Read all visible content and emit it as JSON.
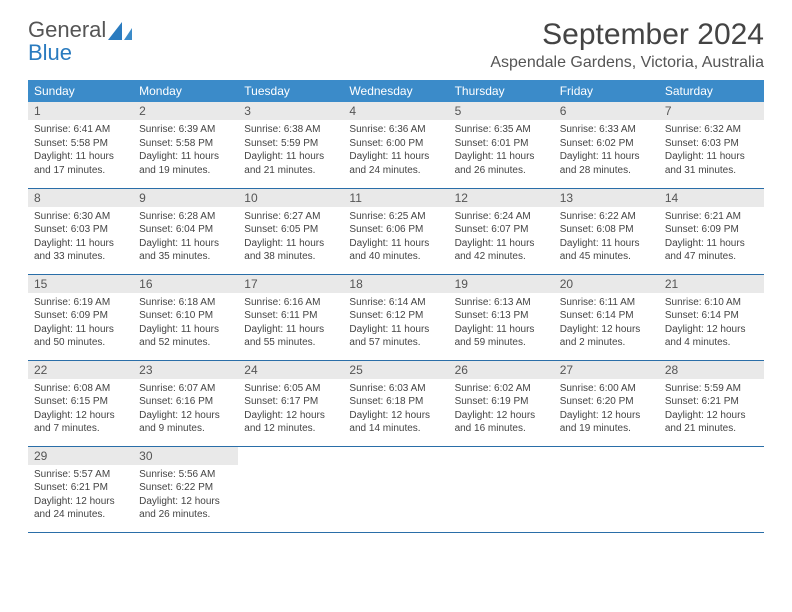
{
  "logo": {
    "line1": "General",
    "line2": "Blue"
  },
  "title": "September 2024",
  "location": "Aspendale Gardens, Victoria, Australia",
  "colors": {
    "header_bg": "#3b8bc9",
    "header_text": "#ffffff",
    "daynum_bg": "#e9e9e9",
    "border": "#2a6ea8",
    "logo_blue": "#2a7bbf"
  },
  "daynames": [
    "Sunday",
    "Monday",
    "Tuesday",
    "Wednesday",
    "Thursday",
    "Friday",
    "Saturday"
  ],
  "days": [
    {
      "n": "1",
      "sr": "Sunrise: 6:41 AM",
      "ss": "Sunset: 5:58 PM",
      "d1": "Daylight: 11 hours",
      "d2": "and 17 minutes."
    },
    {
      "n": "2",
      "sr": "Sunrise: 6:39 AM",
      "ss": "Sunset: 5:58 PM",
      "d1": "Daylight: 11 hours",
      "d2": "and 19 minutes."
    },
    {
      "n": "3",
      "sr": "Sunrise: 6:38 AM",
      "ss": "Sunset: 5:59 PM",
      "d1": "Daylight: 11 hours",
      "d2": "and 21 minutes."
    },
    {
      "n": "4",
      "sr": "Sunrise: 6:36 AM",
      "ss": "Sunset: 6:00 PM",
      "d1": "Daylight: 11 hours",
      "d2": "and 24 minutes."
    },
    {
      "n": "5",
      "sr": "Sunrise: 6:35 AM",
      "ss": "Sunset: 6:01 PM",
      "d1": "Daylight: 11 hours",
      "d2": "and 26 minutes."
    },
    {
      "n": "6",
      "sr": "Sunrise: 6:33 AM",
      "ss": "Sunset: 6:02 PM",
      "d1": "Daylight: 11 hours",
      "d2": "and 28 minutes."
    },
    {
      "n": "7",
      "sr": "Sunrise: 6:32 AM",
      "ss": "Sunset: 6:03 PM",
      "d1": "Daylight: 11 hours",
      "d2": "and 31 minutes."
    },
    {
      "n": "8",
      "sr": "Sunrise: 6:30 AM",
      "ss": "Sunset: 6:03 PM",
      "d1": "Daylight: 11 hours",
      "d2": "and 33 minutes."
    },
    {
      "n": "9",
      "sr": "Sunrise: 6:28 AM",
      "ss": "Sunset: 6:04 PM",
      "d1": "Daylight: 11 hours",
      "d2": "and 35 minutes."
    },
    {
      "n": "10",
      "sr": "Sunrise: 6:27 AM",
      "ss": "Sunset: 6:05 PM",
      "d1": "Daylight: 11 hours",
      "d2": "and 38 minutes."
    },
    {
      "n": "11",
      "sr": "Sunrise: 6:25 AM",
      "ss": "Sunset: 6:06 PM",
      "d1": "Daylight: 11 hours",
      "d2": "and 40 minutes."
    },
    {
      "n": "12",
      "sr": "Sunrise: 6:24 AM",
      "ss": "Sunset: 6:07 PM",
      "d1": "Daylight: 11 hours",
      "d2": "and 42 minutes."
    },
    {
      "n": "13",
      "sr": "Sunrise: 6:22 AM",
      "ss": "Sunset: 6:08 PM",
      "d1": "Daylight: 11 hours",
      "d2": "and 45 minutes."
    },
    {
      "n": "14",
      "sr": "Sunrise: 6:21 AM",
      "ss": "Sunset: 6:09 PM",
      "d1": "Daylight: 11 hours",
      "d2": "and 47 minutes."
    },
    {
      "n": "15",
      "sr": "Sunrise: 6:19 AM",
      "ss": "Sunset: 6:09 PM",
      "d1": "Daylight: 11 hours",
      "d2": "and 50 minutes."
    },
    {
      "n": "16",
      "sr": "Sunrise: 6:18 AM",
      "ss": "Sunset: 6:10 PM",
      "d1": "Daylight: 11 hours",
      "d2": "and 52 minutes."
    },
    {
      "n": "17",
      "sr": "Sunrise: 6:16 AM",
      "ss": "Sunset: 6:11 PM",
      "d1": "Daylight: 11 hours",
      "d2": "and 55 minutes."
    },
    {
      "n": "18",
      "sr": "Sunrise: 6:14 AM",
      "ss": "Sunset: 6:12 PM",
      "d1": "Daylight: 11 hours",
      "d2": "and 57 minutes."
    },
    {
      "n": "19",
      "sr": "Sunrise: 6:13 AM",
      "ss": "Sunset: 6:13 PM",
      "d1": "Daylight: 11 hours",
      "d2": "and 59 minutes."
    },
    {
      "n": "20",
      "sr": "Sunrise: 6:11 AM",
      "ss": "Sunset: 6:14 PM",
      "d1": "Daylight: 12 hours",
      "d2": "and 2 minutes."
    },
    {
      "n": "21",
      "sr": "Sunrise: 6:10 AM",
      "ss": "Sunset: 6:14 PM",
      "d1": "Daylight: 12 hours",
      "d2": "and 4 minutes."
    },
    {
      "n": "22",
      "sr": "Sunrise: 6:08 AM",
      "ss": "Sunset: 6:15 PM",
      "d1": "Daylight: 12 hours",
      "d2": "and 7 minutes."
    },
    {
      "n": "23",
      "sr": "Sunrise: 6:07 AM",
      "ss": "Sunset: 6:16 PM",
      "d1": "Daylight: 12 hours",
      "d2": "and 9 minutes."
    },
    {
      "n": "24",
      "sr": "Sunrise: 6:05 AM",
      "ss": "Sunset: 6:17 PM",
      "d1": "Daylight: 12 hours",
      "d2": "and 12 minutes."
    },
    {
      "n": "25",
      "sr": "Sunrise: 6:03 AM",
      "ss": "Sunset: 6:18 PM",
      "d1": "Daylight: 12 hours",
      "d2": "and 14 minutes."
    },
    {
      "n": "26",
      "sr": "Sunrise: 6:02 AM",
      "ss": "Sunset: 6:19 PM",
      "d1": "Daylight: 12 hours",
      "d2": "and 16 minutes."
    },
    {
      "n": "27",
      "sr": "Sunrise: 6:00 AM",
      "ss": "Sunset: 6:20 PM",
      "d1": "Daylight: 12 hours",
      "d2": "and 19 minutes."
    },
    {
      "n": "28",
      "sr": "Sunrise: 5:59 AM",
      "ss": "Sunset: 6:21 PM",
      "d1": "Daylight: 12 hours",
      "d2": "and 21 minutes."
    },
    {
      "n": "29",
      "sr": "Sunrise: 5:57 AM",
      "ss": "Sunset: 6:21 PM",
      "d1": "Daylight: 12 hours",
      "d2": "and 24 minutes."
    },
    {
      "n": "30",
      "sr": "Sunrise: 5:56 AM",
      "ss": "Sunset: 6:22 PM",
      "d1": "Daylight: 12 hours",
      "d2": "and 26 minutes."
    }
  ]
}
